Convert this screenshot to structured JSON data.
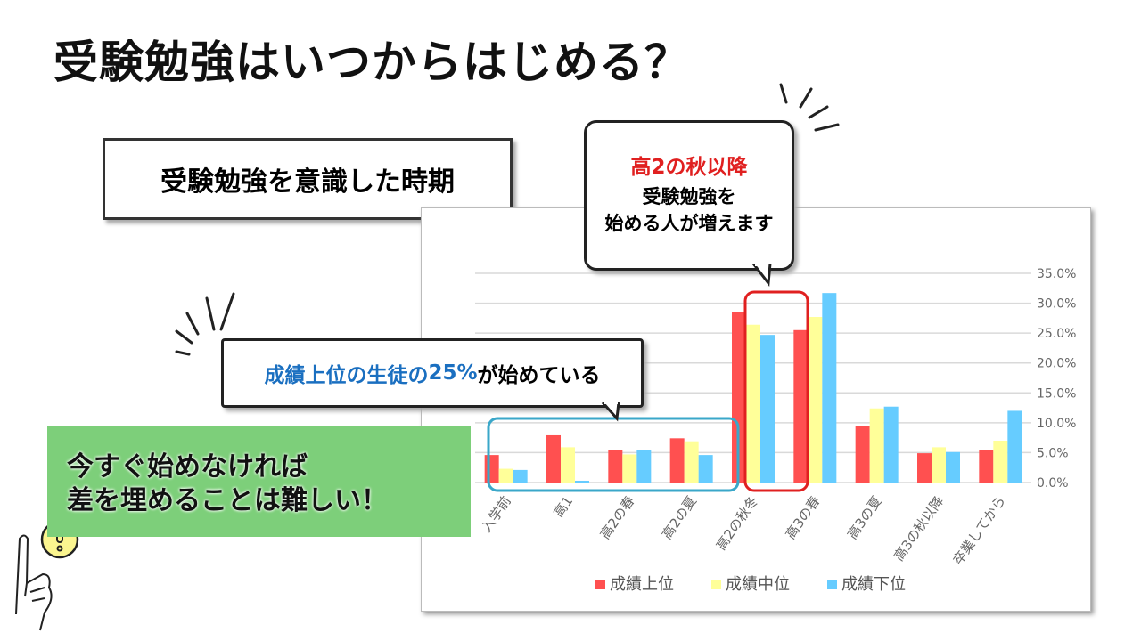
{
  "title": "受験勉強はいつからはじめる？",
  "subtitle": "受験勉強を意識した時期",
  "callout_top": {
    "highlight": "高2の秋以降",
    "line2": "受験勉強を",
    "line3": "始める人が増えます"
  },
  "callout_mid": {
    "part1": "成績上位の生徒の",
    "part2": "25%",
    "part3": "が始めている"
  },
  "green_box": {
    "line1": "今すぐ始めなければ",
    "line2": "差を埋めることは難しい！"
  },
  "icons": [
    "exclamation-icon",
    "pointing-hand-icon"
  ],
  "chart_data": {
    "type": "bar",
    "categories": [
      "入学前",
      "高1",
      "高2の春",
      "高2の夏",
      "高2の秋冬",
      "高3の春",
      "高3の夏",
      "高3の秋以降",
      "卒業してから"
    ],
    "series": [
      {
        "name": "成績上位",
        "color": "#ff5050",
        "values": [
          4.6,
          7.9,
          5.4,
          7.4,
          28.5,
          25.5,
          9.4,
          4.9,
          5.4
        ]
      },
      {
        "name": "成績中位",
        "color": "#ffff99",
        "values": [
          2.3,
          5.9,
          4.7,
          6.9,
          26.4,
          27.7,
          12.4,
          5.9,
          7.0
        ]
      },
      {
        "name": "成績下位",
        "color": "#66ccff",
        "values": [
          2.1,
          0.3,
          5.5,
          4.6,
          24.7,
          31.7,
          12.7,
          5.1,
          12.0
        ]
      }
    ],
    "ylim": [
      0,
      35
    ],
    "yticks": [
      "0.0%",
      "5.0%",
      "10.0%",
      "15.0%",
      "20.0%",
      "25.0%",
      "30.0%",
      "35.0%"
    ],
    "grid": true,
    "legend": "bottom"
  }
}
